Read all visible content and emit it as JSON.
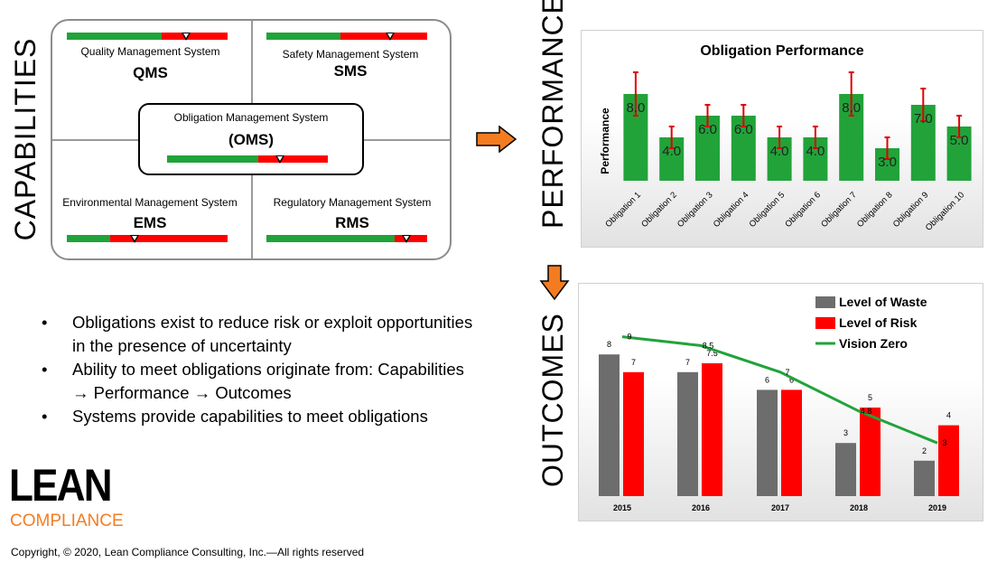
{
  "side_labels": {
    "capabilities": "CAPABILITIES",
    "performance": "PERFORMANCE",
    "outcomes": "OUTCOMES"
  },
  "systems": {
    "qms": {
      "name": "Quality Management System",
      "abbr": "QMS",
      "green_fraction": 0.59,
      "marker_fraction": 0.74
    },
    "sms": {
      "name": "Safety Management System",
      "abbr": "SMS",
      "green_fraction": 0.46,
      "marker_fraction": 0.77
    },
    "oms": {
      "name": "Obligation Management System",
      "abbr": "(OMS)",
      "green_fraction": 0.57,
      "marker_fraction": 0.7
    },
    "ems": {
      "name": "Environmental Management System",
      "abbr": "EMS",
      "green_fraction": 0.27,
      "marker_fraction": 0.42
    },
    "rms": {
      "name": "Regulatory Management System",
      "abbr": "RMS",
      "green_fraction": 0.8,
      "marker_fraction": 0.87
    }
  },
  "bullets": [
    "Obligations exist to reduce risk or exploit opportunities in the presence of uncertainty",
    "Ability to meet obligations originate from: Capabilities → Performance → Outcomes",
    "Systems provide capabilities to meet obligations"
  ],
  "logo": {
    "top": "LEAN",
    "bottom": "COMPLIANCE"
  },
  "copyright": "Copyright, © 2020, Lean Compliance Consulting, Inc.—All rights reserved",
  "colors": {
    "green": "#21a33a",
    "red": "#ff0000",
    "grey": "#6d6d6d",
    "arrow": "#f47c20"
  },
  "chart_data": [
    {
      "type": "bar",
      "title": "Obligation Performance",
      "ylabel": "Performance",
      "xlabel": "",
      "ylim": [
        0,
        10
      ],
      "categories": [
        "Obligation 1",
        "Obligation 2",
        "Obligation 3",
        "Obligation 4",
        "Obligation 5",
        "Obligation 6",
        "Obligation 7",
        "Obligation 8",
        "Obligation 9",
        "Obligation 10"
      ],
      "values": [
        8.0,
        4.0,
        6.0,
        6.0,
        4.0,
        4.0,
        8.0,
        3.0,
        7.0,
        5.0
      ],
      "value_labels": [
        "8.0",
        "4.0",
        "6.0",
        "6.0",
        "4.0",
        "4.0",
        "8.0",
        "3.0",
        "7.0",
        "5.0"
      ],
      "error_bars": [
        2.0,
        1.0,
        1.0,
        1.0,
        1.0,
        1.0,
        2.0,
        1.0,
        1.5,
        1.0
      ]
    },
    {
      "type": "bar",
      "title": "",
      "xlabel": "",
      "ylabel": "",
      "ylim": [
        0,
        10
      ],
      "legend_position": "top-right",
      "categories": [
        "2015",
        "2016",
        "2017",
        "2018",
        "2019"
      ],
      "series": [
        {
          "name": "Level of Waste",
          "type": "bar",
          "values": [
            8,
            7,
            6,
            3,
            2
          ],
          "labels": [
            "8",
            "7",
            "6",
            "3",
            "2"
          ]
        },
        {
          "name": "Level of Risk",
          "type": "bar",
          "values": [
            7,
            7.5,
            6,
            5,
            4
          ],
          "labels": [
            "7",
            "7.5",
            "6",
            "5",
            "4"
          ]
        },
        {
          "name": "Vision Zero",
          "type": "line",
          "values": [
            9,
            8.5,
            7,
            4.8,
            3
          ],
          "labels": [
            "9",
            "8.5",
            "7",
            "4.8",
            "3"
          ]
        }
      ]
    }
  ]
}
